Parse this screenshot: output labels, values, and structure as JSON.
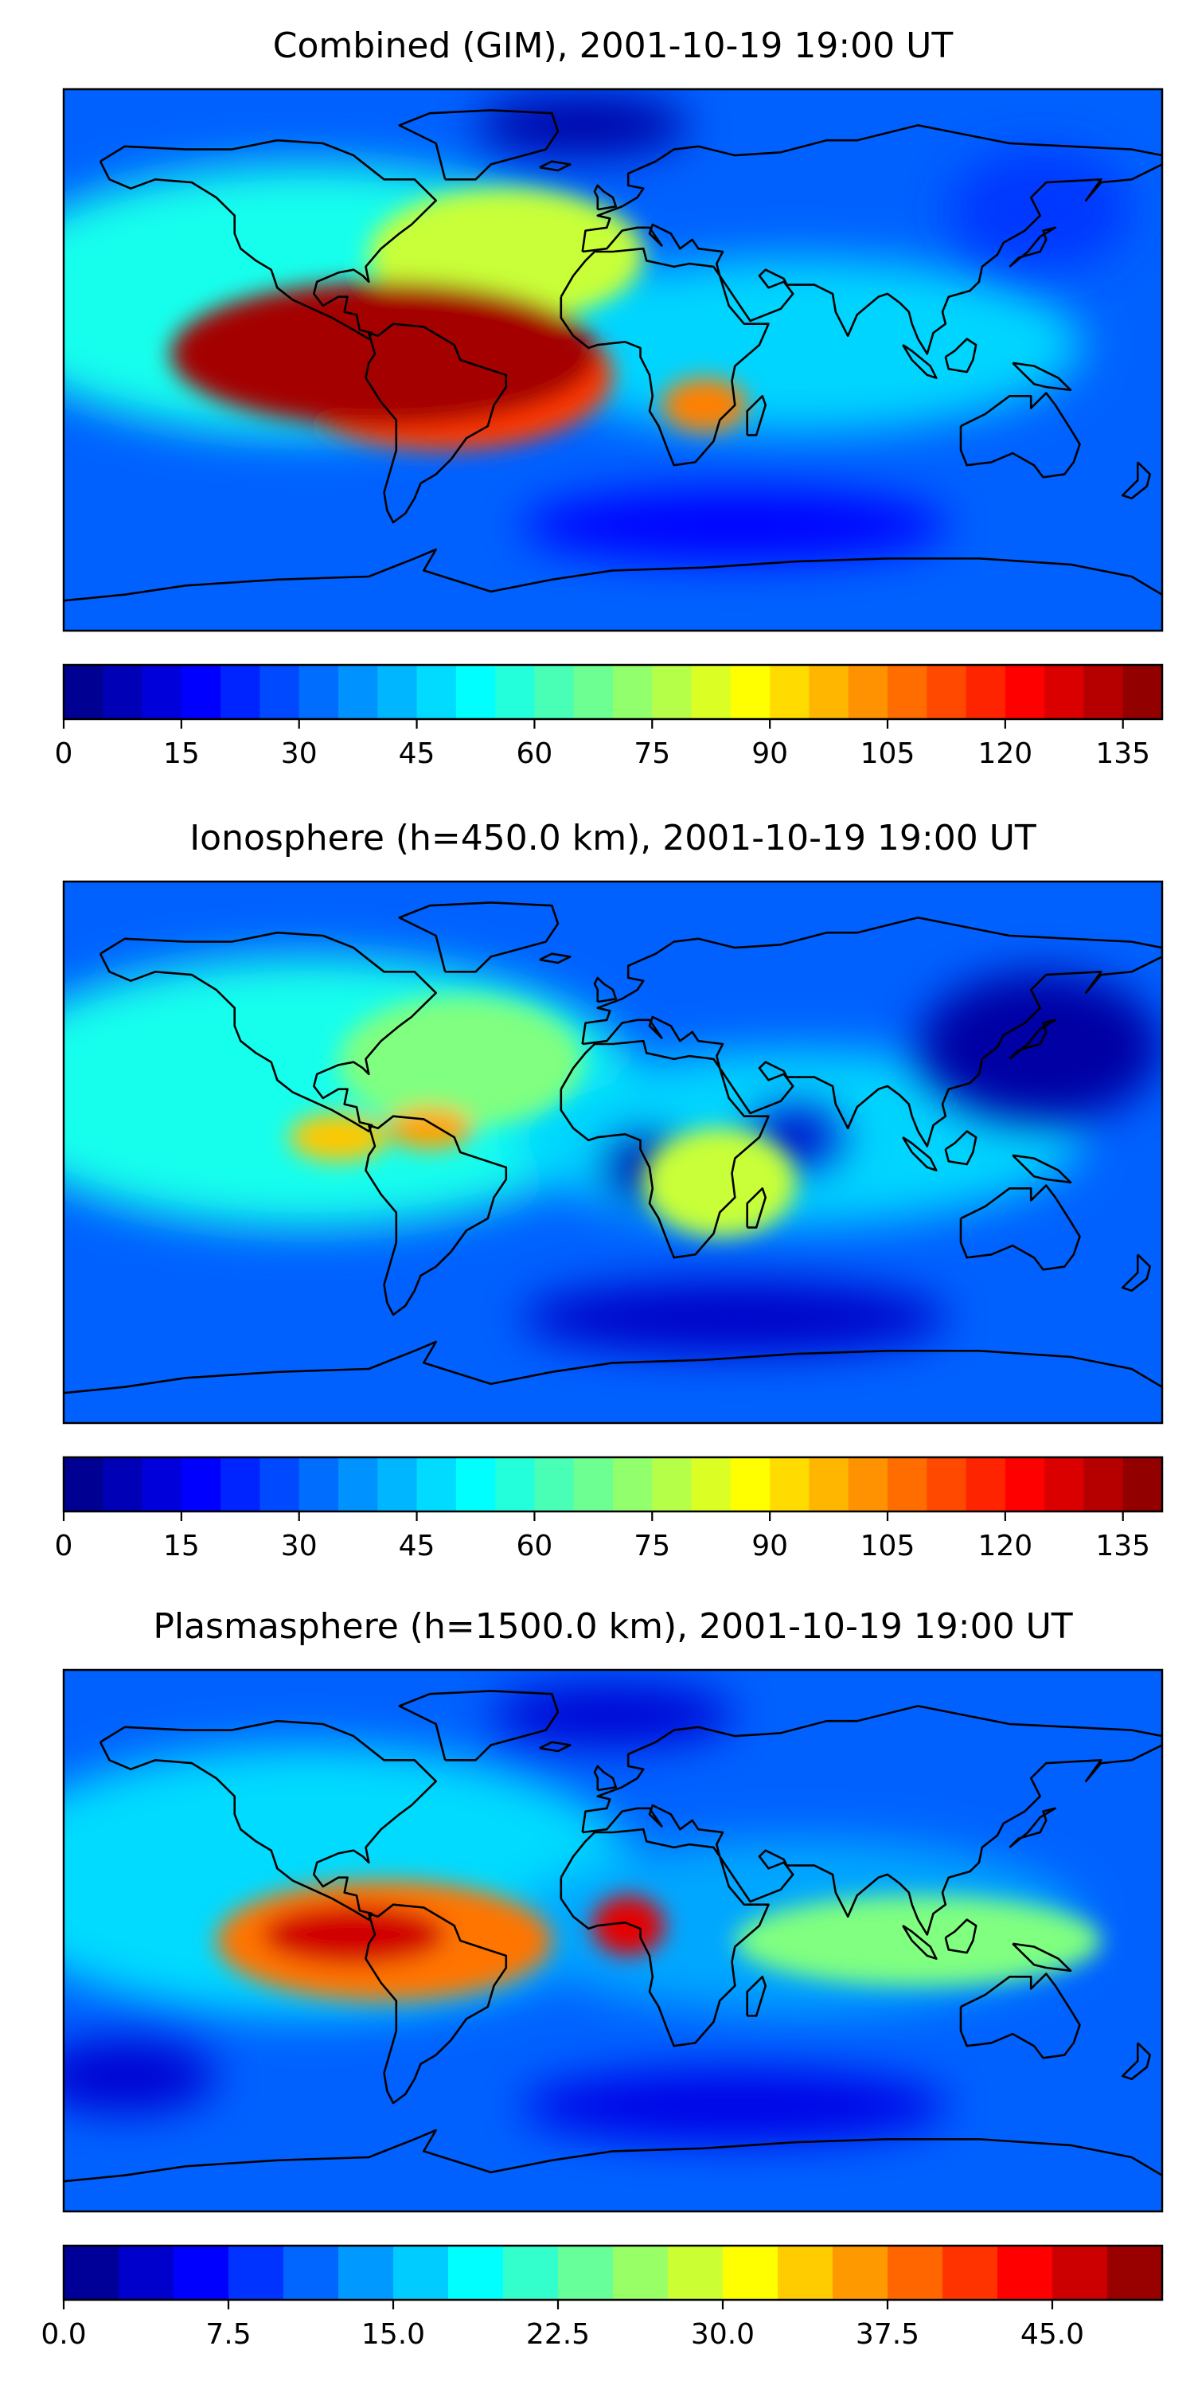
{
  "figure": {
    "panels": [
      {
        "id": "combined",
        "title": "Combined (GIM), 2001-10-19 19:00 UT",
        "colorbar_ticks": [
          "0",
          "15",
          "30",
          "45",
          "60",
          "75",
          "90",
          "105",
          "120",
          "135"
        ],
        "colorbar_range": [
          0,
          140
        ],
        "colorbar_step": 5,
        "hotspots": [
          {
            "lon": -75,
            "lat": 2,
            "value": 135,
            "rx": 70,
            "ry": 24
          },
          {
            "lon": -55,
            "lat": -5,
            "value": 115,
            "rx": 55,
            "ry": 25
          },
          {
            "lon": 30,
            "lat": -15,
            "value": 105,
            "rx": 14,
            "ry": 9
          },
          {
            "lon": -35,
            "lat": 35,
            "value": 80,
            "rx": 45,
            "ry": 22
          }
        ],
        "lowspots": [
          {
            "lon": -10,
            "lat": 78,
            "value": 5,
            "rx": 35,
            "ry": 10
          },
          {
            "lon": 140,
            "lat": 50,
            "value": 25,
            "rx": 30,
            "ry": 20
          },
          {
            "lon": 40,
            "lat": -55,
            "value": 18,
            "rx": 70,
            "ry": 12
          }
        ]
      },
      {
        "id": "ionosphere",
        "title": "Ionosphere  (h=450.0 km), 2001-10-19 19:00 UT",
        "colorbar_ticks": [
          "0",
          "15",
          "30",
          "45",
          "60",
          "75",
          "90",
          "105",
          "120",
          "135"
        ],
        "colorbar_range": [
          0,
          140
        ],
        "colorbar_step": 5,
        "hotspots": [
          {
            "lon": -90,
            "lat": 5,
            "value": 95,
            "rx": 16,
            "ry": 8
          },
          {
            "lon": -60,
            "lat": 8,
            "value": 100,
            "rx": 14,
            "ry": 7
          },
          {
            "lon": 35,
            "lat": -10,
            "value": 80,
            "rx": 25,
            "ry": 18
          },
          {
            "lon": -50,
            "lat": 30,
            "value": 70,
            "rx": 40,
            "ry": 22
          }
        ],
        "lowspots": [
          {
            "lon": 10,
            "lat": -5,
            "value": 5,
            "rx": 12,
            "ry": 10
          },
          {
            "lon": 60,
            "lat": 5,
            "value": 10,
            "rx": 15,
            "ry": 10
          },
          {
            "lon": 140,
            "lat": 35,
            "value": 5,
            "rx": 40,
            "ry": 25
          },
          {
            "lon": 40,
            "lat": -55,
            "value": 10,
            "rx": 70,
            "ry": 12
          }
        ]
      },
      {
        "id": "plasmasphere",
        "title": "Plasmasphere (h=1500.0 km), 2001-10-19 19:00 UT",
        "colorbar_ticks": [
          "0.0",
          "7.5",
          "15.0",
          "22.5",
          "30.0",
          "37.5",
          "45.0"
        ],
        "colorbar_range": [
          0,
          50
        ],
        "colorbar_step": 2.5,
        "hotspots": [
          {
            "lon": -85,
            "lat": 2,
            "value": 46,
            "rx": 30,
            "ry": 10
          },
          {
            "lon": 5,
            "lat": 5,
            "value": 45,
            "rx": 12,
            "ry": 10
          },
          {
            "lon": -75,
            "lat": 0,
            "value": 38,
            "rx": 55,
            "ry": 20
          },
          {
            "lon": 100,
            "lat": 0,
            "value": 25,
            "rx": 60,
            "ry": 15
          }
        ],
        "lowspots": [
          {
            "lon": 0,
            "lat": 75,
            "value": 4,
            "rx": 40,
            "ry": 10
          },
          {
            "lon": -160,
            "lat": -45,
            "value": 4,
            "rx": 30,
            "ry": 12
          },
          {
            "lon": 40,
            "lat": -55,
            "value": 5,
            "rx": 70,
            "ry": 12
          }
        ]
      }
    ]
  }
}
